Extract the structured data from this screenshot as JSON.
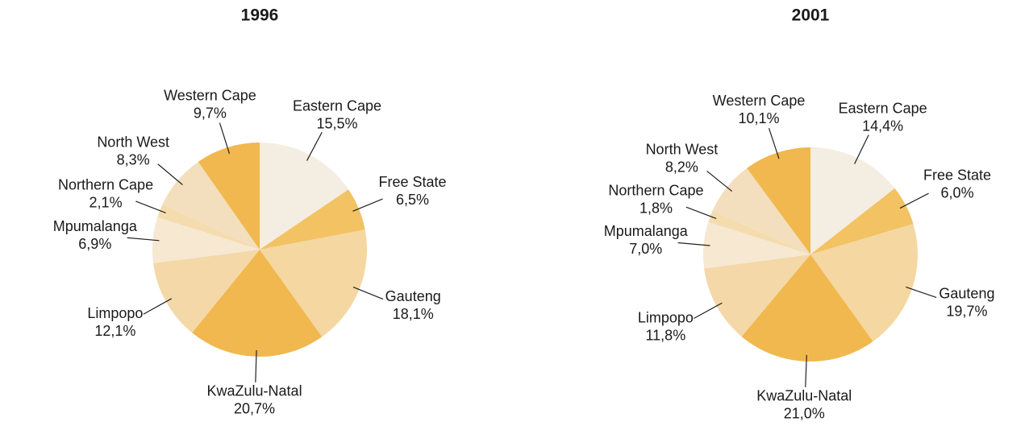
{
  "chart_data": [
    {
      "type": "pie",
      "title": "1996",
      "categories": [
        "Eastern Cape",
        "Free State",
        "Gauteng",
        "KwaZulu-Natal",
        "Limpopo",
        "Mpumalanga",
        "Northern Cape",
        "North West",
        "Western Cape"
      ],
      "values": [
        15.5,
        6.5,
        18.1,
        20.7,
        12.1,
        6.9,
        2.1,
        8.3,
        9.7
      ],
      "value_labels": [
        "15,5%",
        "6,5%",
        "18,1%",
        "20,7%",
        "12,1%",
        "6,9%",
        "2,1%",
        "8,3%",
        "9,7%"
      ],
      "colors": [
        "#f4ede1",
        "#f2c263",
        "#f4d7a1",
        "#f0b84e",
        "#f4d8a8",
        "#f6e8d1",
        "#f4dcae",
        "#f3dfbd",
        "#f0b84e"
      ]
    },
    {
      "type": "pie",
      "title": "2001",
      "categories": [
        "Eastern Cape",
        "Free State",
        "Gauteng",
        "KwaZulu-Natal",
        "Limpopo",
        "Mpumalanga",
        "Northern Cape",
        "North West",
        "Western Cape"
      ],
      "values": [
        14.4,
        6.0,
        19.7,
        21.0,
        11.8,
        7.0,
        1.8,
        8.2,
        10.1
      ],
      "value_labels": [
        "14,4%",
        "6,0%",
        "19,7%",
        "21,0%",
        "11,8%",
        "7,0%",
        "1,8%",
        "8,2%",
        "10,1%"
      ],
      "colors": [
        "#f4ede1",
        "#f2c263",
        "#f4d7a1",
        "#f0b84e",
        "#f4d8a8",
        "#f6e8d1",
        "#f4dcae",
        "#f3dfbd",
        "#f0b84e"
      ]
    }
  ]
}
